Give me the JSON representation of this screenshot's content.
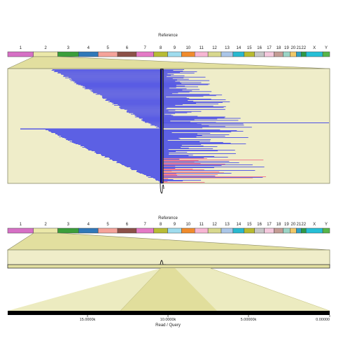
{
  "top_panel": {
    "title": "Reference",
    "chromosomes": [
      {
        "name": "1",
        "color": "#d670c5"
      },
      {
        "name": "2",
        "color": "#ebe8a9"
      },
      {
        "name": "3",
        "color": "#3a9e3a"
      },
      {
        "name": "4",
        "color": "#2f78b9"
      },
      {
        "name": "5",
        "color": "#f5a39a"
      },
      {
        "name": "6",
        "color": "#8c5148"
      },
      {
        "name": "7",
        "color": "#e47ac6"
      },
      {
        "name": "8",
        "color": "#b8bc35"
      },
      {
        "name": "9",
        "color": "#9fdcee"
      },
      {
        "name": "10",
        "color": "#f08b2c"
      },
      {
        "name": "11",
        "color": "#f7b6d3"
      },
      {
        "name": "12",
        "color": "#d8d88e"
      },
      {
        "name": "13",
        "color": "#abc6e8"
      },
      {
        "name": "14",
        "color": "#28b9cf"
      },
      {
        "name": "15",
        "color": "#b9bb2f"
      },
      {
        "name": "16",
        "color": "#c6c6c6"
      },
      {
        "name": "17",
        "color": "#f5c8dd"
      },
      {
        "name": "18",
        "color": "#c49c94"
      },
      {
        "name": "19",
        "color": "#9bd5c6"
      },
      {
        "name": "20",
        "color": "#f0c86a"
      },
      {
        "name": "21",
        "color": "#2fa2c5"
      },
      {
        "name": "22",
        "color": "#2e9b46"
      },
      {
        "name": "X",
        "color": "#26bfd6"
      },
      {
        "name": "Y",
        "color": "#57b649"
      }
    ]
  },
  "bottom_panel": {
    "title": "Reference",
    "highlighted_chromosome": "4",
    "highlight_color": "#2f78b9",
    "read_axis": {
      "label": "Read / Query",
      "ticks": [
        "15.0000k",
        "10.0000k",
        "5.00000k",
        "0.00000"
      ]
    }
  },
  "colors": {
    "panel_fill": "#efedc9",
    "panel_stroke": "#8a8a6a",
    "alignment_blue": "#4d50e6",
    "alignment_red": "#f0708a",
    "alignment_orange": "#f6a27e",
    "breakpoint_line": "#000000"
  }
}
